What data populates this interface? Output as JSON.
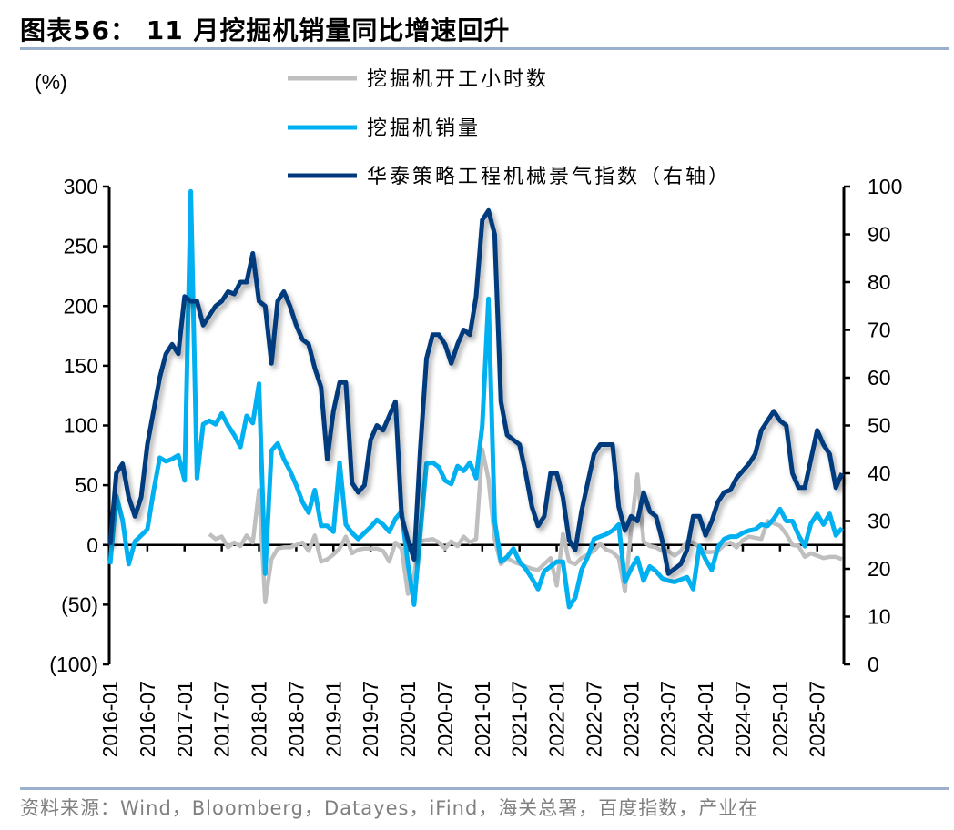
{
  "title": "图表56：  11 月挖掘机销量同比增速回升",
  "source": "资料来源：Wind，Bloomberg，Datayes，iFind，海关总署，百度指数，产业在",
  "chart_data": {
    "type": "line",
    "title": "11 月挖掘机销量同比增速回升",
    "ylabel": "(%)",
    "ylim": [
      -100,
      300
    ],
    "y2lim": [
      0,
      100
    ],
    "yticks": [
      "300",
      "250",
      "200",
      "150",
      "100",
      "50",
      "0",
      "(50)",
      "(100)"
    ],
    "yticks_values": [
      300,
      250,
      200,
      150,
      100,
      50,
      0,
      -50,
      -100
    ],
    "y2ticks": [
      "100",
      "90",
      "80",
      "70",
      "60",
      "50",
      "40",
      "30",
      "20",
      "10",
      "0"
    ],
    "y2ticks_values": [
      100,
      90,
      80,
      70,
      60,
      50,
      40,
      30,
      20,
      10,
      0
    ],
    "xticks": [
      "2016-01",
      "2016-07",
      "2017-01",
      "2017-07",
      "2018-01",
      "2018-07",
      "2019-01",
      "2019-07",
      "2020-01",
      "2020-07",
      "2021-01",
      "2021-07",
      "2022-01",
      "2022-07",
      "2023-01",
      "2023-07",
      "2024-01",
      "2024-07",
      "2025-01",
      "2025-07"
    ],
    "x_start": "2016-01",
    "x_end": "2025-11",
    "legend_position": "top",
    "colors": {
      "hours": "#bfbfbf",
      "sales": "#00b0f0",
      "index": "#003a7d",
      "rule": "#9bb0cc"
    },
    "series": [
      {
        "name": "挖掘机开工小时数",
        "axis": "left",
        "values": [
          null,
          null,
          null,
          null,
          null,
          null,
          null,
          null,
          null,
          null,
          null,
          null,
          null,
          null,
          null,
          null,
          9,
          5,
          7,
          -2,
          2,
          -1,
          8,
          2,
          46,
          -48,
          -12,
          -3,
          -2,
          -2,
          0,
          2,
          -5,
          8,
          -14,
          -12,
          -8,
          -3,
          7,
          -7,
          -4,
          -3,
          -3,
          -3,
          -5,
          -14,
          2,
          -3,
          -41,
          -24,
          3,
          4,
          5,
          2,
          -3,
          3,
          -1,
          7,
          2,
          5,
          80,
          55,
          5,
          -16,
          -11,
          -14,
          -16,
          -18,
          -20,
          -21,
          -16,
          -11,
          -34,
          9,
          -14,
          -16,
          -11,
          -8,
          -5,
          1,
          -4,
          -6,
          -11,
          -39,
          13,
          59,
          3,
          -1,
          -2,
          -5,
          -5,
          -9,
          -5,
          3,
          2,
          -2,
          -6,
          -6,
          -5,
          0,
          2,
          -2,
          4,
          7,
          6,
          5,
          20,
          18,
          16,
          9,
          0,
          -1,
          -10,
          -7,
          -9,
          -11,
          -10,
          -10,
          -12
        ]
      },
      {
        "name": "挖掘机销量",
        "axis": "left",
        "values": [
          -16,
          41,
          21,
          -16,
          3,
          8,
          13,
          45,
          73,
          70,
          72,
          75,
          54,
          296,
          56,
          101,
          104,
          101,
          110,
          100,
          92,
          82,
          108,
          102,
          135,
          -24,
          79,
          85,
          72,
          62,
          50,
          36,
          27,
          46,
          16,
          16,
          11,
          69,
          17,
          10,
          5,
          10,
          15,
          21,
          17,
          11,
          22,
          28,
          -16,
          -50,
          10,
          68,
          69,
          65,
          54,
          51,
          66,
          62,
          69,
          56,
          100,
          206,
          20,
          -14,
          -10,
          -3,
          -14,
          -20,
          -28,
          -37,
          -22,
          -18,
          -14,
          -14,
          -52,
          -44,
          -21,
          -10,
          5,
          7,
          9,
          12,
          17,
          -31,
          -20,
          -11,
          -30,
          -18,
          -22,
          -28,
          -30,
          -31,
          -29,
          -27,
          -37,
          -1,
          -12,
          -21,
          -2,
          5,
          7,
          7,
          10,
          12,
          13,
          17,
          16,
          22,
          30,
          20,
          20,
          8,
          -1,
          18,
          26,
          17,
          26,
          8,
          14
        ]
      },
      {
        "name": "华泰策略工程机械景气指数（右轴）",
        "axis": "right",
        "values": [
          25,
          40,
          42,
          35,
          31,
          35,
          46,
          53,
          60,
          65,
          67,
          65,
          77,
          76,
          76,
          71,
          73,
          75,
          76,
          78,
          77.5,
          80,
          80,
          86,
          76,
          75,
          63,
          76,
          78,
          75,
          71,
          68,
          67,
          62,
          58,
          43,
          53,
          59,
          59,
          38,
          36,
          37.5,
          47,
          50,
          49,
          52,
          55,
          31,
          26,
          22,
          45,
          64,
          69,
          69,
          67,
          63,
          67,
          70,
          69,
          77,
          93,
          95,
          90,
          55,
          48,
          47,
          46,
          40,
          33,
          29,
          31,
          40,
          40,
          35,
          26,
          24,
          32,
          38,
          44,
          46,
          46,
          46,
          33,
          28,
          31,
          30,
          36,
          32,
          31,
          26,
          19,
          20,
          21,
          24,
          31,
          31,
          27,
          30,
          34,
          36,
          36.5,
          39,
          40.5,
          42,
          44,
          49,
          51,
          53,
          51,
          50,
          40,
          37,
          37,
          43,
          49,
          46,
          44,
          37,
          40
        ]
      }
    ]
  }
}
